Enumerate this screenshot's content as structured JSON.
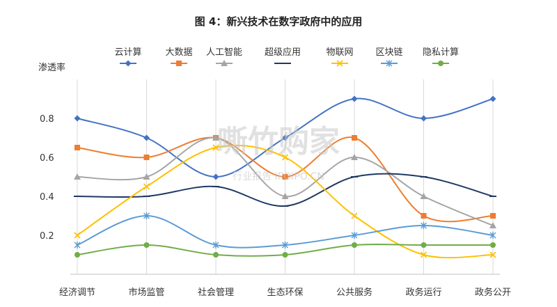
{
  "chart_data": {
    "type": "line",
    "title": "图 4：新兴技术在数字政府中的应用",
    "ylabel": "渗透率",
    "xlabel": "",
    "ylim": [
      0,
      1.0
    ],
    "yticks": [
      0.2,
      0.4,
      0.6,
      0.8
    ],
    "categories": [
      "经济调节",
      "市场监管",
      "社会管理",
      "生态环保",
      "公共服务",
      "政务运行",
      "政务公开"
    ],
    "legend_position": "top",
    "grid": "vertical",
    "series": [
      {
        "name": "云计算",
        "color": "#4472C4",
        "marker": "diamond",
        "values": [
          0.8,
          0.7,
          0.5,
          0.7,
          0.9,
          0.8,
          0.9
        ]
      },
      {
        "name": "大数据",
        "color": "#ED7D31",
        "marker": "square",
        "values": [
          0.65,
          0.6,
          0.7,
          0.5,
          0.7,
          0.3,
          0.3
        ]
      },
      {
        "name": "人工智能",
        "color": "#A5A5A5",
        "marker": "triangle",
        "values": [
          0.5,
          0.5,
          0.7,
          0.4,
          0.6,
          0.4,
          0.25
        ]
      },
      {
        "name": "超级应用",
        "color": "#1F3864",
        "marker": "dash",
        "values": [
          0.4,
          0.4,
          0.45,
          0.35,
          0.5,
          0.5,
          0.4
        ]
      },
      {
        "name": "物联网",
        "color": "#FFC000",
        "marker": "x",
        "values": [
          0.2,
          0.45,
          0.65,
          0.6,
          0.3,
          0.1,
          0.1
        ]
      },
      {
        "name": "区块链",
        "color": "#5B9BD5",
        "marker": "star",
        "values": [
          0.15,
          0.3,
          0.15,
          0.15,
          0.2,
          0.25,
          0.2
        ]
      },
      {
        "name": "隐私计算",
        "color": "#70AD47",
        "marker": "circle",
        "values": [
          0.1,
          0.15,
          0.1,
          0.1,
          0.15,
          0.15,
          0.15
        ]
      }
    ]
  },
  "watermark": {
    "main": "嘶竹购家",
    "sub": "行业报告 IPOIPO.CN"
  }
}
